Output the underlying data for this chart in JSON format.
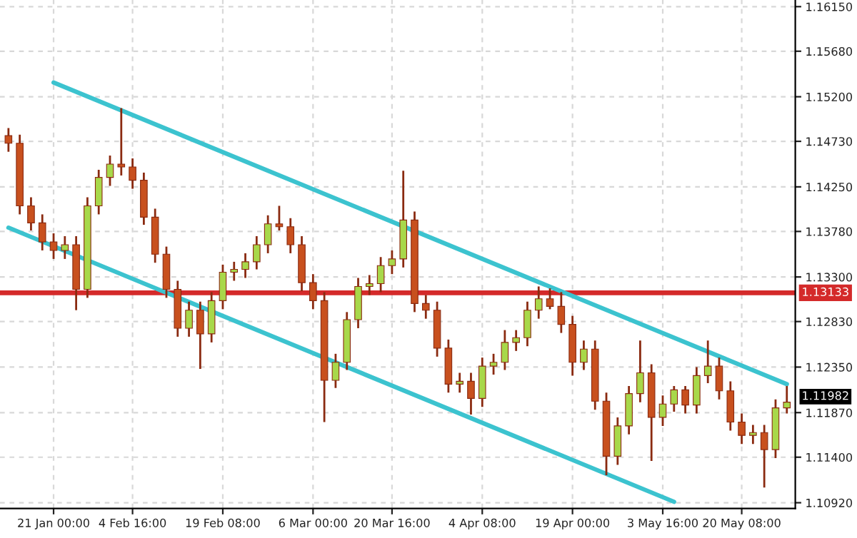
{
  "chart_data": {
    "type": "candlestick",
    "categories": [
      null,
      null,
      null,
      null,
      "21 Jan 00:00",
      null,
      null,
      null,
      null,
      null,
      null,
      "4 Feb 16:00",
      null,
      null,
      null,
      null,
      null,
      null,
      null,
      "19 Feb 08:00",
      null,
      null,
      null,
      null,
      null,
      null,
      null,
      "6 Mar 00:00",
      null,
      null,
      null,
      null,
      null,
      null,
      "20 Mar 16:00",
      null,
      null,
      null,
      null,
      null,
      null,
      null,
      "4 Apr 08:00",
      null,
      null,
      null,
      null,
      null,
      null,
      null,
      "19 Apr 00:00",
      null,
      null,
      null,
      null,
      null,
      null,
      null,
      "3 May 16:00",
      null,
      null,
      null,
      null,
      null,
      null,
      "20 May 08:00",
      null,
      null,
      null,
      null
    ],
    "ohlc": [
      [
        1.1479,
        1.1487,
        1.1462,
        1.1471
      ],
      [
        1.1471,
        1.148,
        1.1396,
        1.1405
      ],
      [
        1.1405,
        1.1414,
        1.1379,
        1.1387
      ],
      [
        1.1387,
        1.1396,
        1.1358,
        1.1367
      ],
      [
        1.1367,
        1.1376,
        1.1349,
        1.1358
      ],
      [
        1.1358,
        1.1373,
        1.1349,
        1.1364
      ],
      [
        1.1364,
        1.1373,
        1.1295,
        1.1317
      ],
      [
        1.1317,
        1.1414,
        1.1308,
        1.1405
      ],
      [
        1.1405,
        1.1443,
        1.1396,
        1.1435
      ],
      [
        1.1435,
        1.1458,
        1.1426,
        1.1449
      ],
      [
        1.1449,
        1.1508,
        1.1437,
        1.1446
      ],
      [
        1.1446,
        1.1455,
        1.1423,
        1.1432
      ],
      [
        1.1432,
        1.144,
        1.1385,
        1.1393
      ],
      [
        1.1393,
        1.1402,
        1.1345,
        1.1354
      ],
      [
        1.1354,
        1.1362,
        1.1308,
        1.1317
      ],
      [
        1.1317,
        1.1326,
        1.1267,
        1.1276
      ],
      [
        1.1276,
        1.1304,
        1.1267,
        1.1295
      ],
      [
        1.1295,
        1.1304,
        1.1233,
        1.127
      ],
      [
        1.127,
        1.1314,
        1.1261,
        1.1305
      ],
      [
        1.1305,
        1.1343,
        1.1296,
        1.1335
      ],
      [
        1.1335,
        1.1346,
        1.1326,
        1.1338
      ],
      [
        1.1338,
        1.1355,
        1.1329,
        1.1346
      ],
      [
        1.1346,
        1.1373,
        1.1338,
        1.1364
      ],
      [
        1.1364,
        1.1395,
        1.1355,
        1.1386
      ],
      [
        1.1386,
        1.1405,
        1.1379,
        1.1383
      ],
      [
        1.1383,
        1.1392,
        1.1355,
        1.1364
      ],
      [
        1.1364,
        1.1373,
        1.1315,
        1.1324
      ],
      [
        1.1324,
        1.1333,
        1.1296,
        1.1305
      ],
      [
        1.1305,
        1.1314,
        1.1177,
        1.1221
      ],
      [
        1.1221,
        1.1249,
        1.1213,
        1.124
      ],
      [
        1.124,
        1.1293,
        1.1232,
        1.1285
      ],
      [
        1.1285,
        1.1329,
        1.1276,
        1.132
      ],
      [
        1.132,
        1.1332,
        1.1311,
        1.1323
      ],
      [
        1.1323,
        1.1351,
        1.1314,
        1.1342
      ],
      [
        1.1342,
        1.1358,
        1.1333,
        1.1349
      ],
      [
        1.1349,
        1.1442,
        1.134,
        1.139
      ],
      [
        1.139,
        1.1399,
        1.1293,
        1.1302
      ],
      [
        1.1302,
        1.1311,
        1.1286,
        1.1295
      ],
      [
        1.1295,
        1.1304,
        1.1246,
        1.1255
      ],
      [
        1.1255,
        1.1264,
        1.1208,
        1.1217
      ],
      [
        1.1217,
        1.1229,
        1.1208,
        1.122
      ],
      [
        1.122,
        1.1229,
        1.1185,
        1.1202
      ],
      [
        1.1202,
        1.1245,
        1.1193,
        1.1236
      ],
      [
        1.1236,
        1.1249,
        1.1227,
        1.124
      ],
      [
        1.124,
        1.1274,
        1.1232,
        1.1261
      ],
      [
        1.1261,
        1.1274,
        1.1252,
        1.1266
      ],
      [
        1.1266,
        1.1304,
        1.1257,
        1.1295
      ],
      [
        1.1295,
        1.132,
        1.1286,
        1.1307
      ],
      [
        1.1307,
        1.1318,
        1.1296,
        1.1299
      ],
      [
        1.1299,
        1.1314,
        1.1271,
        1.128
      ],
      [
        1.128,
        1.1289,
        1.1226,
        1.124
      ],
      [
        1.124,
        1.1263,
        1.1232,
        1.1254
      ],
      [
        1.1254,
        1.1263,
        1.119,
        1.1199
      ],
      [
        1.1199,
        1.1208,
        1.1121,
        1.1141
      ],
      [
        1.1141,
        1.1182,
        1.1132,
        1.1173
      ],
      [
        1.1173,
        1.1215,
        1.1164,
        1.1207
      ],
      [
        1.1207,
        1.1263,
        1.1198,
        1.1229
      ],
      [
        1.1229,
        1.1238,
        1.1136,
        1.1182
      ],
      [
        1.1182,
        1.1205,
        1.1173,
        1.1196
      ],
      [
        1.1196,
        1.1215,
        1.1188,
        1.1211
      ],
      [
        1.1211,
        1.1215,
        1.1186,
        1.1195
      ],
      [
        1.1195,
        1.1235,
        1.1186,
        1.1226
      ],
      [
        1.1226,
        1.1263,
        1.1218,
        1.1236
      ],
      [
        1.1236,
        1.1245,
        1.1201,
        1.121
      ],
      [
        1.121,
        1.122,
        1.1168,
        1.1177
      ],
      [
        1.1177,
        1.1186,
        1.1154,
        1.1163
      ],
      [
        1.1163,
        1.1174,
        1.1154,
        1.1166
      ],
      [
        1.1166,
        1.1174,
        1.1108,
        1.1148
      ],
      [
        1.1148,
        1.1201,
        1.1139,
        1.1192
      ],
      [
        1.1192,
        1.1215,
        1.1186,
        1.1198
      ]
    ],
    "colors": [
      "#c8501e",
      "#c8501e",
      "#c8501e",
      "#c8501e",
      "#c8501e",
      "#a8d84a",
      "#c8501e",
      "#a8d84a",
      "#a8d84a",
      "#a8d84a",
      "#c8501e",
      "#c8501e",
      "#c8501e",
      "#c8501e",
      "#c8501e",
      "#c8501e",
      "#a8d84a",
      "#c8501e",
      "#a8d84a",
      "#a8d84a",
      "#a8d84a",
      "#a8d84a",
      "#a8d84a",
      "#a8d84a",
      "#c8501e",
      "#c8501e",
      "#c8501e",
      "#c8501e",
      "#c8501e",
      "#a8d84a",
      "#a8d84a",
      "#a8d84a",
      "#a8d84a",
      "#a8d84a",
      "#a8d84a",
      "#a8d84a",
      "#c8501e",
      "#c8501e",
      "#c8501e",
      "#c8501e",
      "#a8d84a",
      "#c8501e",
      "#a8d84a",
      "#a8d84a",
      "#a8d84a",
      "#a8d84a",
      "#a8d84a",
      "#a8d84a",
      "#c8501e",
      "#c8501e",
      "#c8501e",
      "#a8d84a",
      "#c8501e",
      "#c8501e",
      "#a8d84a",
      "#a8d84a",
      "#a8d84a",
      "#c8501e",
      "#a8d84a",
      "#a8d84a",
      "#c8501e",
      "#a8d84a",
      "#a8d84a",
      "#c8501e",
      "#c8501e",
      "#c8501e",
      "#a8d84a",
      "#c8501e",
      "#a8d84a",
      "#a8d84a"
    ],
    "series": [
      {
        "type": "line",
        "color": "#3cc3cf",
        "values": [
          null,
          null,
          null,
          null,
          1.1535,
          null,
          null,
          null,
          null,
          null,
          null,
          null,
          null,
          null,
          null,
          null,
          null,
          null,
          null,
          null,
          null,
          null,
          null,
          null,
          null,
          null,
          null,
          null,
          null,
          null,
          null,
          null,
          null,
          null,
          null,
          null,
          null,
          null,
          null,
          null,
          null,
          null,
          null,
          null,
          null,
          null,
          null,
          null,
          null,
          null,
          null,
          null,
          null,
          null,
          null,
          null,
          null,
          null,
          null,
          null,
          null,
          null,
          null,
          null,
          null,
          null,
          null,
          null,
          null,
          1.1217
        ]
      },
      {
        "type": "line",
        "color": "#3cc3cf",
        "values": [
          1.1382,
          null,
          null,
          null,
          null,
          null,
          null,
          null,
          null,
          null,
          null,
          null,
          null,
          null,
          null,
          null,
          null,
          null,
          null,
          null,
          null,
          null,
          null,
          null,
          null,
          null,
          null,
          null,
          null,
          null,
          null,
          null,
          null,
          null,
          null,
          null,
          null,
          null,
          null,
          null,
          null,
          null,
          null,
          null,
          null,
          null,
          null,
          null,
          null,
          null,
          null,
          null,
          null,
          null,
          null,
          null,
          null,
          null,
          null,
          1.1093,
          null,
          null,
          null,
          null,
          null,
          null,
          null,
          null,
          null,
          null
        ]
      }
    ],
    "ref_lines": [
      {
        "axis": "y",
        "value": 1.13133,
        "label": "1.13133",
        "color": "#d42a2a"
      }
    ],
    "annotations": [
      "1.11982"
    ],
    "ylim": [
      1.1086,
      1.1622
    ],
    "yticks": [
      {
        "value": 1.1092,
        "label": "1.10920"
      },
      {
        "value": 1.114,
        "label": "1.11400"
      },
      {
        "value": 1.1187,
        "label": "1.11870"
      },
      {
        "value": 1.1235,
        "label": "1.12350"
      },
      {
        "value": 1.1283,
        "label": "1.12830"
      },
      {
        "value": 1.133,
        "label": "1.13300"
      },
      {
        "value": 1.1378,
        "label": "1.13780"
      },
      {
        "value": 1.1425,
        "label": "1.14250"
      },
      {
        "value": 1.1473,
        "label": "1.14730"
      },
      {
        "value": 1.152,
        "label": "1.15200"
      },
      {
        "value": 1.1568,
        "label": "1.15680"
      },
      {
        "value": 1.1615,
        "label": "1.16150"
      }
    ],
    "grid": true
  }
}
